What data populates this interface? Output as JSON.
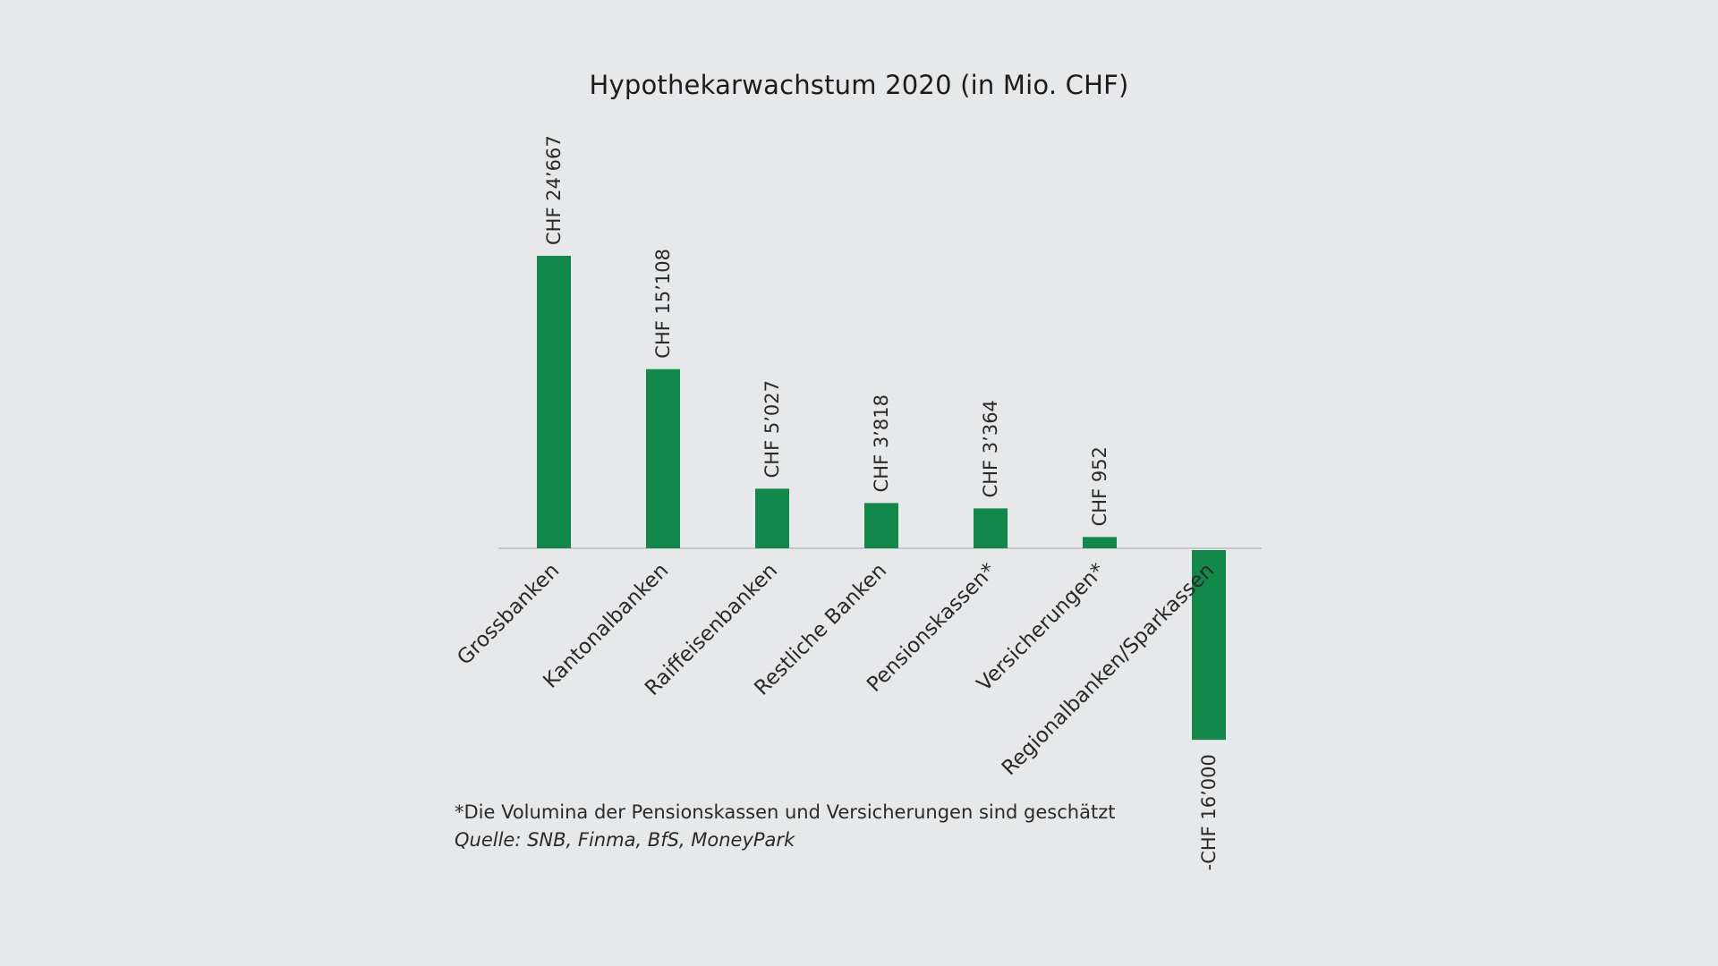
{
  "chart_data": {
    "type": "bar",
    "title": "Hypothekarwachstum 2020 (in Mio. CHF)",
    "categories": [
      "Grossbanken",
      "Kantonalbanken",
      "Raiffeisenbanken",
      "Restliche Banken",
      "Pensionskassen*",
      "Versicherungen*",
      "Regionalbanken/Sparkassen"
    ],
    "values": [
      24667,
      15108,
      5027,
      3818,
      3364,
      952,
      -16000
    ],
    "value_labels": [
      "CHF 24’667",
      "CHF 15’108",
      "CHF 5’027",
      "CHF 3’818",
      "CHF 3’364",
      "CHF 952",
      "-CHF 16’000"
    ],
    "xlabel": "",
    "ylabel": "",
    "ylim": [
      -16000,
      24667
    ],
    "grid": false,
    "legend": "none",
    "colors": {
      "bar": "#13884b",
      "axis": "#c4c6c8",
      "text": "#2a2a2a"
    }
  },
  "footnote": "*Die Volumina der Pensionskassen und Versicherungen sind geschätzt",
  "source": "Quelle: SNB, Finma, BfS, MoneyPark"
}
